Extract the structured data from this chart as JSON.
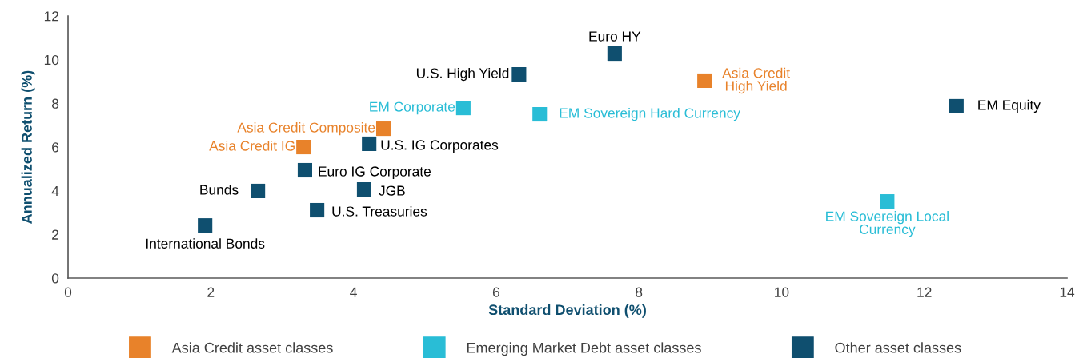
{
  "chart_data": {
    "type": "scatter",
    "xlabel": "Standard Deviation (%)",
    "ylabel": "Annualized Return (%)",
    "xlim": [
      0,
      14
    ],
    "xticks": [
      0,
      2,
      4,
      6,
      8,
      10,
      12,
      14
    ],
    "ylim": [
      0,
      12
    ],
    "yticks": [
      0,
      2,
      4,
      6,
      8,
      10,
      12
    ],
    "grid": false,
    "legend": "bottom",
    "marker": "square",
    "series": [
      {
        "name": "Asia Credit asset classes",
        "color": "#e8822a",
        "x": [
          8.92,
          4.42,
          3.3
        ],
        "values": [
          9.04,
          6.84,
          6.0
        ],
        "value_labels": [
          "Asia Credit\nHigh Yield",
          "Asia Credit Composite",
          "Asia Credit IG"
        ]
      },
      {
        "name": "Emerging Market Debt asset classes",
        "color": "#29bdd6",
        "x": [
          5.54,
          6.61,
          11.48
        ],
        "values": [
          7.79,
          7.5,
          3.51
        ],
        "value_labels": [
          "EM Corporate",
          "EM Sovereign Hard Currency",
          "EM Sovereign Local\nCurrency"
        ]
      },
      {
        "name": "Other asset classes",
        "color": "#0f4f6f",
        "x": [
          7.66,
          6.32,
          12.45,
          4.22,
          3.32,
          2.66,
          4.15,
          3.49,
          1.92
        ],
        "values": [
          10.28,
          9.33,
          7.87,
          6.15,
          4.94,
          3.99,
          4.06,
          3.11,
          2.41
        ],
        "value_labels": [
          "Euro HY",
          "U.S. High Yield",
          "EM Equity",
          "U.S. IG Corporates",
          "Euro IG Corporate",
          "Bunds",
          "JGB",
          "U.S. Treasuries",
          "International Bonds"
        ]
      }
    ]
  }
}
